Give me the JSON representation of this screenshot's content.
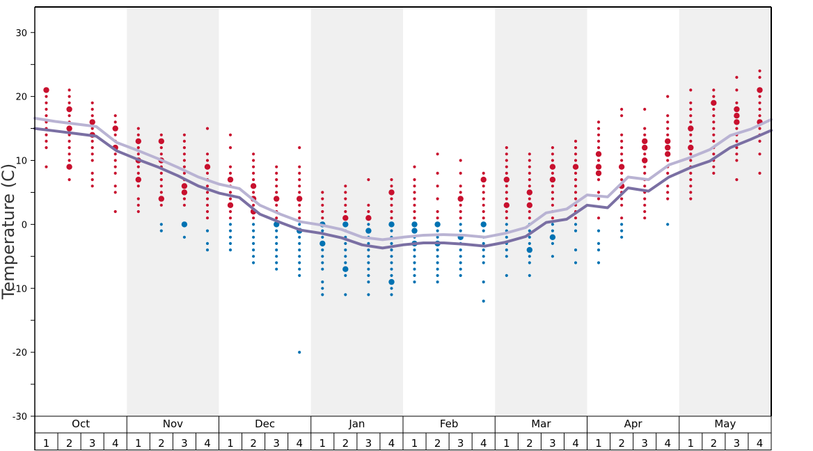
{
  "chart_data": {
    "type": "scatter",
    "title": "",
    "ylabel": "Temperature (C)",
    "xlabel": "",
    "ylim": [
      -30,
      34
    ],
    "yticks": [
      30,
      20,
      10,
      0,
      -10,
      -20,
      -30
    ],
    "months": [
      "Oct",
      "Nov",
      "Dec",
      "Jan",
      "Feb",
      "Mar",
      "Apr",
      "May"
    ],
    "weeks": [
      "1",
      "2",
      "3",
      "4"
    ],
    "shaded_months": [
      "Nov",
      "Jan",
      "Mar",
      "May"
    ],
    "colors": {
      "warm": "#c8102e",
      "cold": "#0072b2",
      "line_dark": "#7a6fa3",
      "line_light": "#b9b3d3",
      "shade": "#f0f0f0"
    },
    "series": [
      {
        "values": [
          15,
          14.6,
          14.2,
          13.8,
          11.5,
          10.2,
          9,
          7.6,
          6,
          4.9,
          4.2,
          1.6,
          0.3,
          -0.9,
          -1.4,
          -2.1,
          -3.2,
          -3.7,
          -3.2,
          -2.9,
          -2.9,
          -3.1,
          -3.4,
          -2.8,
          -1.9,
          0.3,
          0.8,
          3,
          2.6,
          5.7,
          5.2,
          7.4,
          8.8,
          9.9,
          12,
          13.3,
          14.7
        ]
      },
      {
        "values": [
          16.6,
          16.1,
          15.7,
          15.3,
          12.8,
          11.6,
          10.3,
          8.9,
          7.4,
          6.3,
          5.6,
          3,
          1.6,
          0.4,
          -0.1,
          -0.8,
          -2,
          -2.4,
          -2,
          -1.7,
          -1.6,
          -1.7,
          -2,
          -1.4,
          -0.5,
          1.8,
          2.4,
          4.6,
          4.3,
          7.4,
          7,
          9.3,
          10.4,
          11.7,
          13.9,
          14.9,
          16.4
        ]
      }
    ],
    "points": [
      {
        "week": 0,
        "temps": [
          21,
          20,
          19,
          18,
          17,
          16,
          15,
          14,
          13,
          12,
          9
        ],
        "big": [
          21
        ]
      },
      {
        "week": 1,
        "temps": [
          21,
          20,
          19,
          18,
          17,
          16,
          15,
          14,
          13,
          12,
          11,
          10,
          9,
          7
        ],
        "big": [
          18,
          15,
          9
        ]
      },
      {
        "week": 2,
        "temps": [
          19,
          18,
          17,
          16,
          15,
          14,
          13,
          12,
          11,
          10,
          8,
          7,
          6
        ],
        "big": [
          16,
          14
        ]
      },
      {
        "week": 3,
        "temps": [
          17,
          16,
          15,
          14,
          13,
          12,
          11,
          10,
          9,
          8,
          6,
          5,
          2
        ],
        "big": [
          15,
          12
        ]
      },
      {
        "week": 4,
        "temps": [
          15,
          14,
          13,
          12,
          11,
          10,
          9,
          8,
          7,
          6,
          4,
          3,
          2
        ],
        "big": [
          13,
          10,
          7
        ]
      },
      {
        "week": 5,
        "temps": [
          14,
          13,
          12,
          11,
          10,
          9,
          8,
          7,
          6,
          5,
          4,
          3,
          0,
          -1
        ],
        "big": [
          13,
          10,
          4
        ]
      },
      {
        "week": 6,
        "temps": [
          14,
          13,
          12,
          11,
          10,
          9,
          8,
          7,
          6,
          5,
          4,
          3,
          0,
          -2
        ],
        "big": [
          6,
          5,
          0
        ]
      },
      {
        "week": 7,
        "temps": [
          15,
          11,
          10,
          9,
          8,
          7,
          6,
          5,
          4,
          3,
          2,
          1,
          -1,
          -3,
          -4
        ],
        "big": [
          9
        ]
      },
      {
        "week": 8,
        "temps": [
          14,
          12,
          9,
          8,
          7,
          6,
          5,
          4,
          3,
          2,
          1,
          0,
          -1,
          -2,
          -3,
          -4
        ],
        "big": [
          7,
          3
        ]
      },
      {
        "week": 9,
        "temps": [
          11,
          10,
          9,
          8,
          7,
          6,
          5,
          4,
          3,
          2,
          1,
          0,
          -1,
          -2,
          -3,
          -4,
          -5,
          -6
        ],
        "big": [
          6,
          4,
          2
        ]
      },
      {
        "week": 10,
        "temps": [
          9,
          8,
          7,
          6,
          5,
          4,
          3,
          2,
          1,
          0,
          -1,
          -2,
          -3,
          -4,
          -5,
          -6,
          -7
        ],
        "big": [
          4,
          0
        ]
      },
      {
        "week": 11,
        "temps": [
          12,
          9,
          8,
          7,
          6,
          5,
          4,
          3,
          2,
          1,
          0,
          -1,
          -2,
          -3,
          -4,
          -5,
          -6,
          -7,
          -8,
          -20
        ],
        "big": [
          4,
          -1
        ]
      },
      {
        "week": 12,
        "temps": [
          5,
          4,
          3,
          2,
          1,
          0,
          -1,
          -2,
          -3,
          -4,
          -5,
          -6,
          -7,
          -9,
          -10,
          -11
        ],
        "big": [
          0,
          -3
        ]
      },
      {
        "week": 13,
        "temps": [
          6,
          5,
          4,
          3,
          2,
          1,
          0,
          -1,
          -2,
          -3,
          -4,
          -5,
          -6,
          -7,
          -8,
          -11
        ],
        "big": [
          1,
          0,
          -7
        ]
      },
      {
        "week": 14,
        "temps": [
          7,
          3,
          2,
          1,
          0,
          -1,
          -2,
          -3,
          -4,
          -5,
          -6,
          -7,
          -8,
          -9,
          -11
        ],
        "big": [
          1,
          -1
        ]
      },
      {
        "week": 15,
        "temps": [
          7,
          6,
          5,
          4,
          3,
          2,
          1,
          0,
          -1,
          -2,
          -3,
          -4,
          -5,
          -6,
          -7,
          -8,
          -9,
          -10,
          -11
        ],
        "big": [
          5,
          0,
          -9
        ]
      },
      {
        "week": 16,
        "temps": [
          9,
          7,
          6,
          5,
          4,
          3,
          2,
          1,
          0,
          -1,
          -2,
          -3,
          -4,
          -5,
          -6,
          -7,
          -8,
          -9
        ],
        "big": [
          0,
          -1,
          -3
        ]
      },
      {
        "week": 17,
        "temps": [
          11,
          8,
          6,
          4,
          2,
          1,
          0,
          -1,
          -2,
          -3,
          -4,
          -5,
          -6,
          -7,
          -8,
          -9
        ],
        "big": [
          0,
          -3
        ]
      },
      {
        "week": 18,
        "temps": [
          10,
          8,
          6,
          5,
          4,
          3,
          2,
          1,
          0,
          -1,
          -2,
          -3,
          -4,
          -5,
          -6,
          -7,
          -8
        ],
        "big": [
          4,
          -2
        ]
      },
      {
        "week": 19,
        "temps": [
          8,
          7,
          6,
          5,
          4,
          3,
          2,
          1,
          0,
          -1,
          -2,
          -3,
          -4,
          -5,
          -6,
          -9,
          -12
        ],
        "big": [
          7,
          0
        ]
      },
      {
        "week": 20,
        "temps": [
          12,
          11,
          10,
          9,
          8,
          7,
          6,
          5,
          4,
          3,
          2,
          1,
          0,
          -1,
          -2,
          -3,
          -4,
          -5,
          -8
        ],
        "big": [
          7,
          3
        ]
      },
      {
        "week": 21,
        "temps": [
          11,
          10,
          9,
          8,
          7,
          6,
          5,
          4,
          3,
          2,
          1,
          0,
          -1,
          -2,
          -3,
          -4,
          -5,
          -6,
          -8
        ],
        "big": [
          5,
          3,
          -4
        ]
      },
      {
        "week": 22,
        "temps": [
          12,
          11,
          10,
          9,
          8,
          7,
          6,
          5,
          4,
          3,
          2,
          1,
          0,
          -1,
          -2,
          -3,
          -5
        ],
        "big": [
          9,
          7,
          -2
        ]
      },
      {
        "week": 23,
        "temps": [
          13,
          12,
          11,
          10,
          9,
          8,
          7,
          6,
          5,
          4,
          3,
          2,
          1,
          0,
          -1,
          -4,
          -6
        ],
        "big": [
          9
        ]
      },
      {
        "week": 24,
        "temps": [
          16,
          15,
          14,
          13,
          12,
          11,
          10,
          9,
          8,
          7,
          5,
          4,
          1,
          -1,
          -3,
          -4,
          -6
        ],
        "big": [
          11,
          9,
          8
        ]
      },
      {
        "week": 25,
        "temps": [
          18,
          17,
          14,
          13,
          12,
          11,
          10,
          9,
          8,
          7,
          6,
          5,
          4,
          3,
          1,
          0,
          -1,
          -2
        ],
        "big": [
          9,
          6
        ]
      },
      {
        "week": 26,
        "temps": [
          18,
          15,
          14,
          13,
          12,
          11,
          10,
          9,
          8,
          7,
          6,
          5,
          4,
          3,
          2,
          1
        ],
        "big": [
          13,
          12,
          10
        ]
      },
      {
        "week": 27,
        "temps": [
          20,
          17,
          16,
          15,
          14,
          13,
          12,
          11,
          10,
          9,
          8,
          6,
          5,
          4,
          0
        ],
        "big": [
          13,
          12,
          11
        ]
      },
      {
        "week": 28,
        "temps": [
          21,
          19,
          18,
          17,
          16,
          15,
          14,
          13,
          12,
          11,
          10,
          9,
          8,
          7,
          6,
          5,
          4
        ],
        "big": [
          15,
          12
        ]
      },
      {
        "week": 29,
        "temps": [
          21,
          20,
          19,
          18,
          17,
          16,
          15,
          14,
          13,
          12,
          11,
          10,
          9,
          8
        ],
        "big": [
          19
        ]
      },
      {
        "week": 30,
        "temps": [
          23,
          21,
          19,
          18,
          17,
          16,
          15,
          14,
          13,
          12,
          11,
          10,
          7
        ],
        "big": [
          18,
          17,
          16
        ]
      },
      {
        "week": 31,
        "temps": [
          24,
          23,
          21,
          20,
          19,
          18,
          17,
          16,
          15,
          14,
          13,
          11,
          8
        ],
        "big": [
          21,
          16
        ]
      }
    ]
  }
}
